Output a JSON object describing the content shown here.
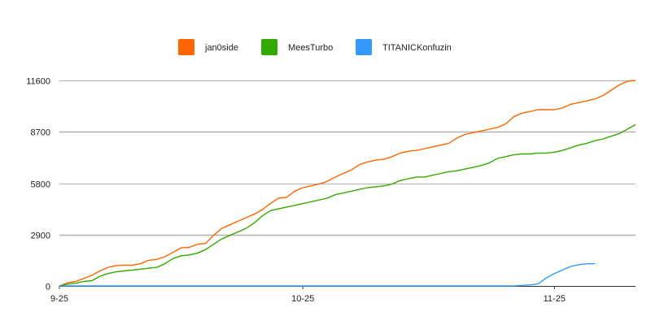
{
  "chart_data": {
    "type": "line",
    "title": "",
    "xlabel": "",
    "ylabel": "",
    "x_tick_labels": [
      "9-25",
      "10-25",
      "11-25"
    ],
    "x_tick_indices": [
      0,
      30,
      61
    ],
    "y_ticks": [
      0,
      2900,
      5800,
      8700,
      11600
    ],
    "ylim": [
      0,
      11600
    ],
    "grid": true,
    "legend_position": "top",
    "n_points": 72,
    "series": [
      {
        "name": "jan0side",
        "color": "#ff6600",
        "values": [
          0,
          180,
          250,
          420,
          600,
          850,
          1050,
          1150,
          1180,
          1170,
          1250,
          1450,
          1500,
          1650,
          1900,
          2150,
          2180,
          2350,
          2400,
          2850,
          3250,
          3450,
          3650,
          3850,
          4050,
          4300,
          4650,
          4950,
          5000,
          5350,
          5550,
          5650,
          5750,
          5900,
          6150,
          6350,
          6550,
          6850,
          7000,
          7100,
          7150,
          7300,
          7500,
          7600,
          7650,
          7750,
          7850,
          7950,
          8050,
          8350,
          8550,
          8650,
          8750,
          8850,
          8950,
          9150,
          9550,
          9750,
          9850,
          9950,
          9950,
          9950,
          10050,
          10250,
          10350,
          10450,
          10550,
          10750,
          11050,
          11350,
          11550,
          11600
        ]
      },
      {
        "name": "MeesTurbo",
        "color": "#33aa00",
        "values": [
          0,
          100,
          150,
          250,
          300,
          550,
          700,
          800,
          850,
          900,
          950,
          1000,
          1050,
          1250,
          1550,
          1700,
          1750,
          1850,
          2050,
          2350,
          2650,
          2850,
          3050,
          3250,
          3550,
          3950,
          4250,
          4350,
          4450,
          4550,
          4650,
          4750,
          4850,
          4950,
          5150,
          5250,
          5350,
          5450,
          5550,
          5600,
          5650,
          5750,
          5950,
          6050,
          6150,
          6150,
          6250,
          6350,
          6450,
          6500,
          6600,
          6700,
          6800,
          6950,
          7200,
          7300,
          7400,
          7450,
          7450,
          7500,
          7500,
          7550,
          7650,
          7800,
          7950,
          8050,
          8200,
          8300,
          8450,
          8600,
          8850,
          9100
        ]
      },
      {
        "name": "TITANICKonfuzin",
        "color": "#3399ff",
        "values": [
          0,
          0,
          0,
          0,
          0,
          0,
          0,
          0,
          0,
          0,
          0,
          0,
          0,
          0,
          0,
          0,
          0,
          0,
          0,
          0,
          0,
          0,
          0,
          0,
          0,
          0,
          0,
          0,
          0,
          0,
          0,
          0,
          0,
          0,
          0,
          0,
          0,
          0,
          0,
          0,
          0,
          0,
          0,
          0,
          0,
          0,
          0,
          0,
          0,
          0,
          0,
          0,
          0,
          0,
          0,
          0,
          0,
          30,
          60,
          120,
          450,
          700,
          900,
          1100,
          1200,
          1250,
          1250,
          null,
          null,
          null,
          null,
          null
        ]
      }
    ]
  }
}
